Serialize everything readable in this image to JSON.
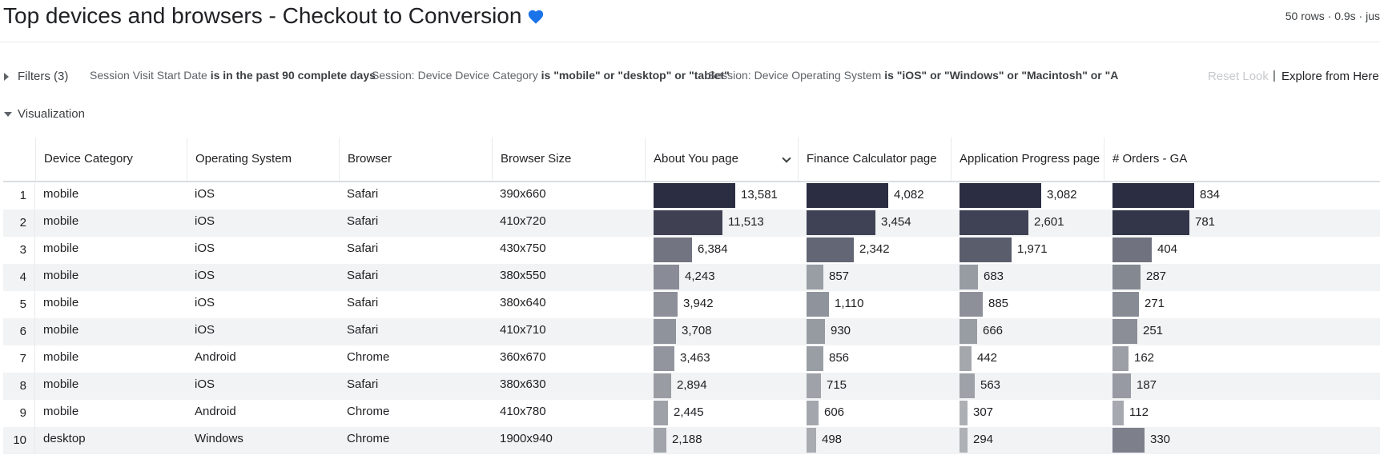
{
  "header": {
    "title": "Top devices and browsers - Checkout to Conversion",
    "meta": "50 rows · 0.9s · jus"
  },
  "filters": {
    "label": "Filters (3)",
    "items": [
      {
        "field": "Session Visit Start Date",
        "condition": "is in the past 90 complete days"
      },
      {
        "field": "Session: Device Device Category",
        "condition": "is \"mobile\" or \"desktop\" or \"tablet\""
      },
      {
        "field": "Session: Device Operating System",
        "condition": "is \"iOS\" or \"Windows\" or \"Macintosh\" or \"A"
      }
    ],
    "reset_label": "Reset Look",
    "separator": "|",
    "explore_label": "Explore from Here"
  },
  "visualization": {
    "label": "Visualization"
  },
  "colors": {
    "bar_dark": "#2b2d42",
    "bar_mid": "#464858",
    "bar_light": "#c1c5c7",
    "row_alt": "#f1f3f4",
    "heart": "#1a73e8"
  },
  "table": {
    "columns": [
      {
        "label": "Device Category"
      },
      {
        "label": "Operating System"
      },
      {
        "label": "Browser"
      },
      {
        "label": "Browser Size"
      },
      {
        "label": "About You page",
        "sort": "chevron-down-icon"
      },
      {
        "label": "Finance Calculator page"
      },
      {
        "label": "Application Progress page"
      },
      {
        "label": "# Orders - GA"
      }
    ],
    "measure_max": [
      13581,
      4082,
      3082,
      834
    ],
    "rows": [
      {
        "index": "1",
        "device": "mobile",
        "os": "iOS",
        "browser": "Safari",
        "size": "390x660",
        "measures": [
          "13,581",
          "4,082",
          "3,082",
          "834"
        ],
        "values": [
          13581,
          4082,
          3082,
          834
        ]
      },
      {
        "index": "2",
        "device": "mobile",
        "os": "iOS",
        "browser": "Safari",
        "size": "410x720",
        "measures": [
          "11,513",
          "3,454",
          "2,601",
          "781"
        ],
        "values": [
          11513,
          3454,
          2601,
          781
        ]
      },
      {
        "index": "3",
        "device": "mobile",
        "os": "iOS",
        "browser": "Safari",
        "size": "430x750",
        "measures": [
          "6,384",
          "2,342",
          "1,971",
          "404"
        ],
        "values": [
          6384,
          2342,
          1971,
          404
        ]
      },
      {
        "index": "4",
        "device": "mobile",
        "os": "iOS",
        "browser": "Safari",
        "size": "380x550",
        "measures": [
          "4,243",
          "857",
          "683",
          "287"
        ],
        "values": [
          4243,
          857,
          683,
          287
        ]
      },
      {
        "index": "5",
        "device": "mobile",
        "os": "iOS",
        "browser": "Safari",
        "size": "380x640",
        "measures": [
          "3,942",
          "1,110",
          "885",
          "271"
        ],
        "values": [
          3942,
          1110,
          885,
          271
        ]
      },
      {
        "index": "6",
        "device": "mobile",
        "os": "iOS",
        "browser": "Safari",
        "size": "410x710",
        "measures": [
          "3,708",
          "930",
          "666",
          "251"
        ],
        "values": [
          3708,
          930,
          666,
          251
        ]
      },
      {
        "index": "7",
        "device": "mobile",
        "os": "Android",
        "browser": "Chrome",
        "size": "360x670",
        "measures": [
          "3,463",
          "856",
          "442",
          "162"
        ],
        "values": [
          3463,
          856,
          442,
          162
        ]
      },
      {
        "index": "8",
        "device": "mobile",
        "os": "iOS",
        "browser": "Safari",
        "size": "380x630",
        "measures": [
          "2,894",
          "715",
          "563",
          "187"
        ],
        "values": [
          2894,
          715,
          563,
          187
        ]
      },
      {
        "index": "9",
        "device": "mobile",
        "os": "Android",
        "browser": "Chrome",
        "size": "410x780",
        "measures": [
          "2,445",
          "606",
          "307",
          "112"
        ],
        "values": [
          2445,
          606,
          307,
          112
        ]
      },
      {
        "index": "10",
        "device": "desktop",
        "os": "Windows",
        "browser": "Chrome",
        "size": "1900x940",
        "measures": [
          "2,188",
          "498",
          "294",
          "330"
        ],
        "values": [
          2188,
          498,
          294,
          330
        ]
      }
    ]
  }
}
